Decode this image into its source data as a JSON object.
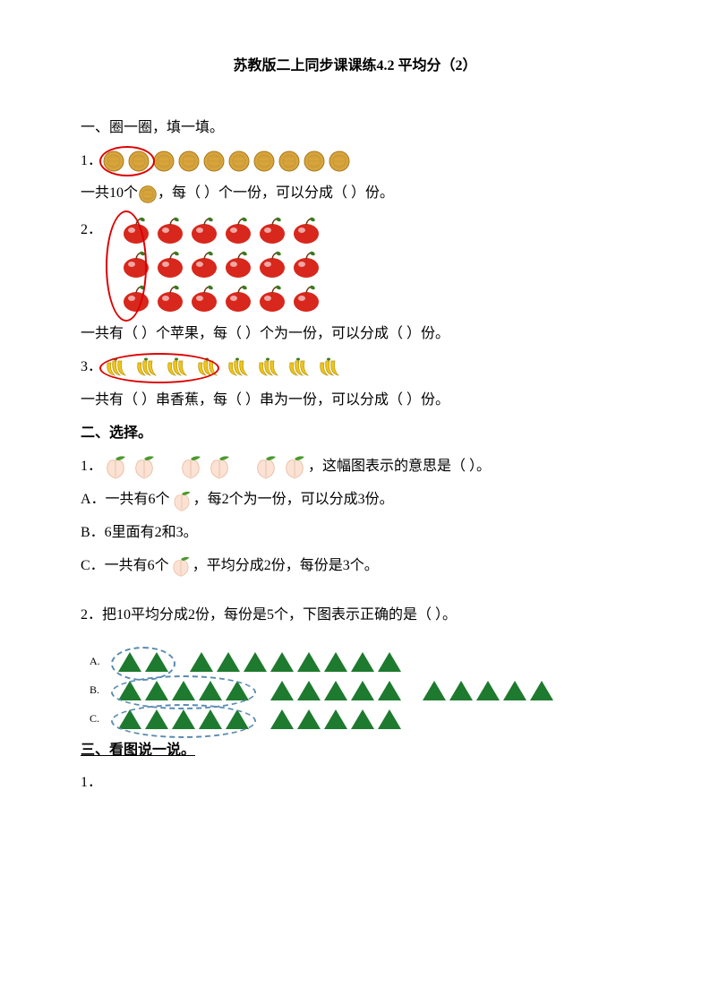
{
  "title": "苏教版二上同步课课练4.2  平均分（2）",
  "section1": {
    "heading": "一、圈一圈，填一填。",
    "q1": {
      "num": "1．",
      "count": 10,
      "text_a": "一共10个",
      "text_b": "，每（   ）个一份，可以分成（   ）份。",
      "icon_color": "#d9a43a",
      "circle_color": "#cc0000"
    },
    "q2": {
      "num": "2．",
      "rows": 3,
      "cols": 6,
      "text": "一共有（   ）个苹果，每（   ）个为一份，可以分成（   ）份。",
      "apple_color": "#d8271c",
      "leaf_color": "#3a7a1e",
      "circle_color": "#cc0000"
    },
    "q3": {
      "num": "3．",
      "count": 8,
      "text": "一共有（   ）串香蕉，每（   ）串为一份，可以分成（   ）份。",
      "banana_color": "#f0c51a",
      "circle_color": "#cc0000"
    }
  },
  "section2": {
    "heading": "二、选择。",
    "q1": {
      "num": "1．",
      "groups": 3,
      "per_group": 2,
      "trail": "，这幅图表示的意思是（     ）。",
      "optA": "A．一共有6个",
      "optA_tail": "，每2个为一份，可以分成3份。",
      "optB": "B．6里面有2和3。",
      "optC": "C．一共有6个",
      "optC_tail": "，平均分成2份，每份是3个。",
      "peach_body": "#fbe2d5",
      "peach_leaf": "#4a9a2e"
    },
    "q2": {
      "num": "2．把10平均分成2份，每份是5个，下图表示正确的是（    ）。",
      "tri_color": "#1e7a2e",
      "dash_color": "#5a8bb0",
      "optA": {
        "label": "A.",
        "groups": [
          2,
          8
        ]
      },
      "optB": {
        "label": "B.",
        "groups": [
          5,
          5,
          5
        ]
      },
      "optC": {
        "label": "C.",
        "groups": [
          5,
          5
        ]
      }
    }
  },
  "section3": {
    "heading": "三、看图说一说。",
    "q1_num": "1．"
  }
}
